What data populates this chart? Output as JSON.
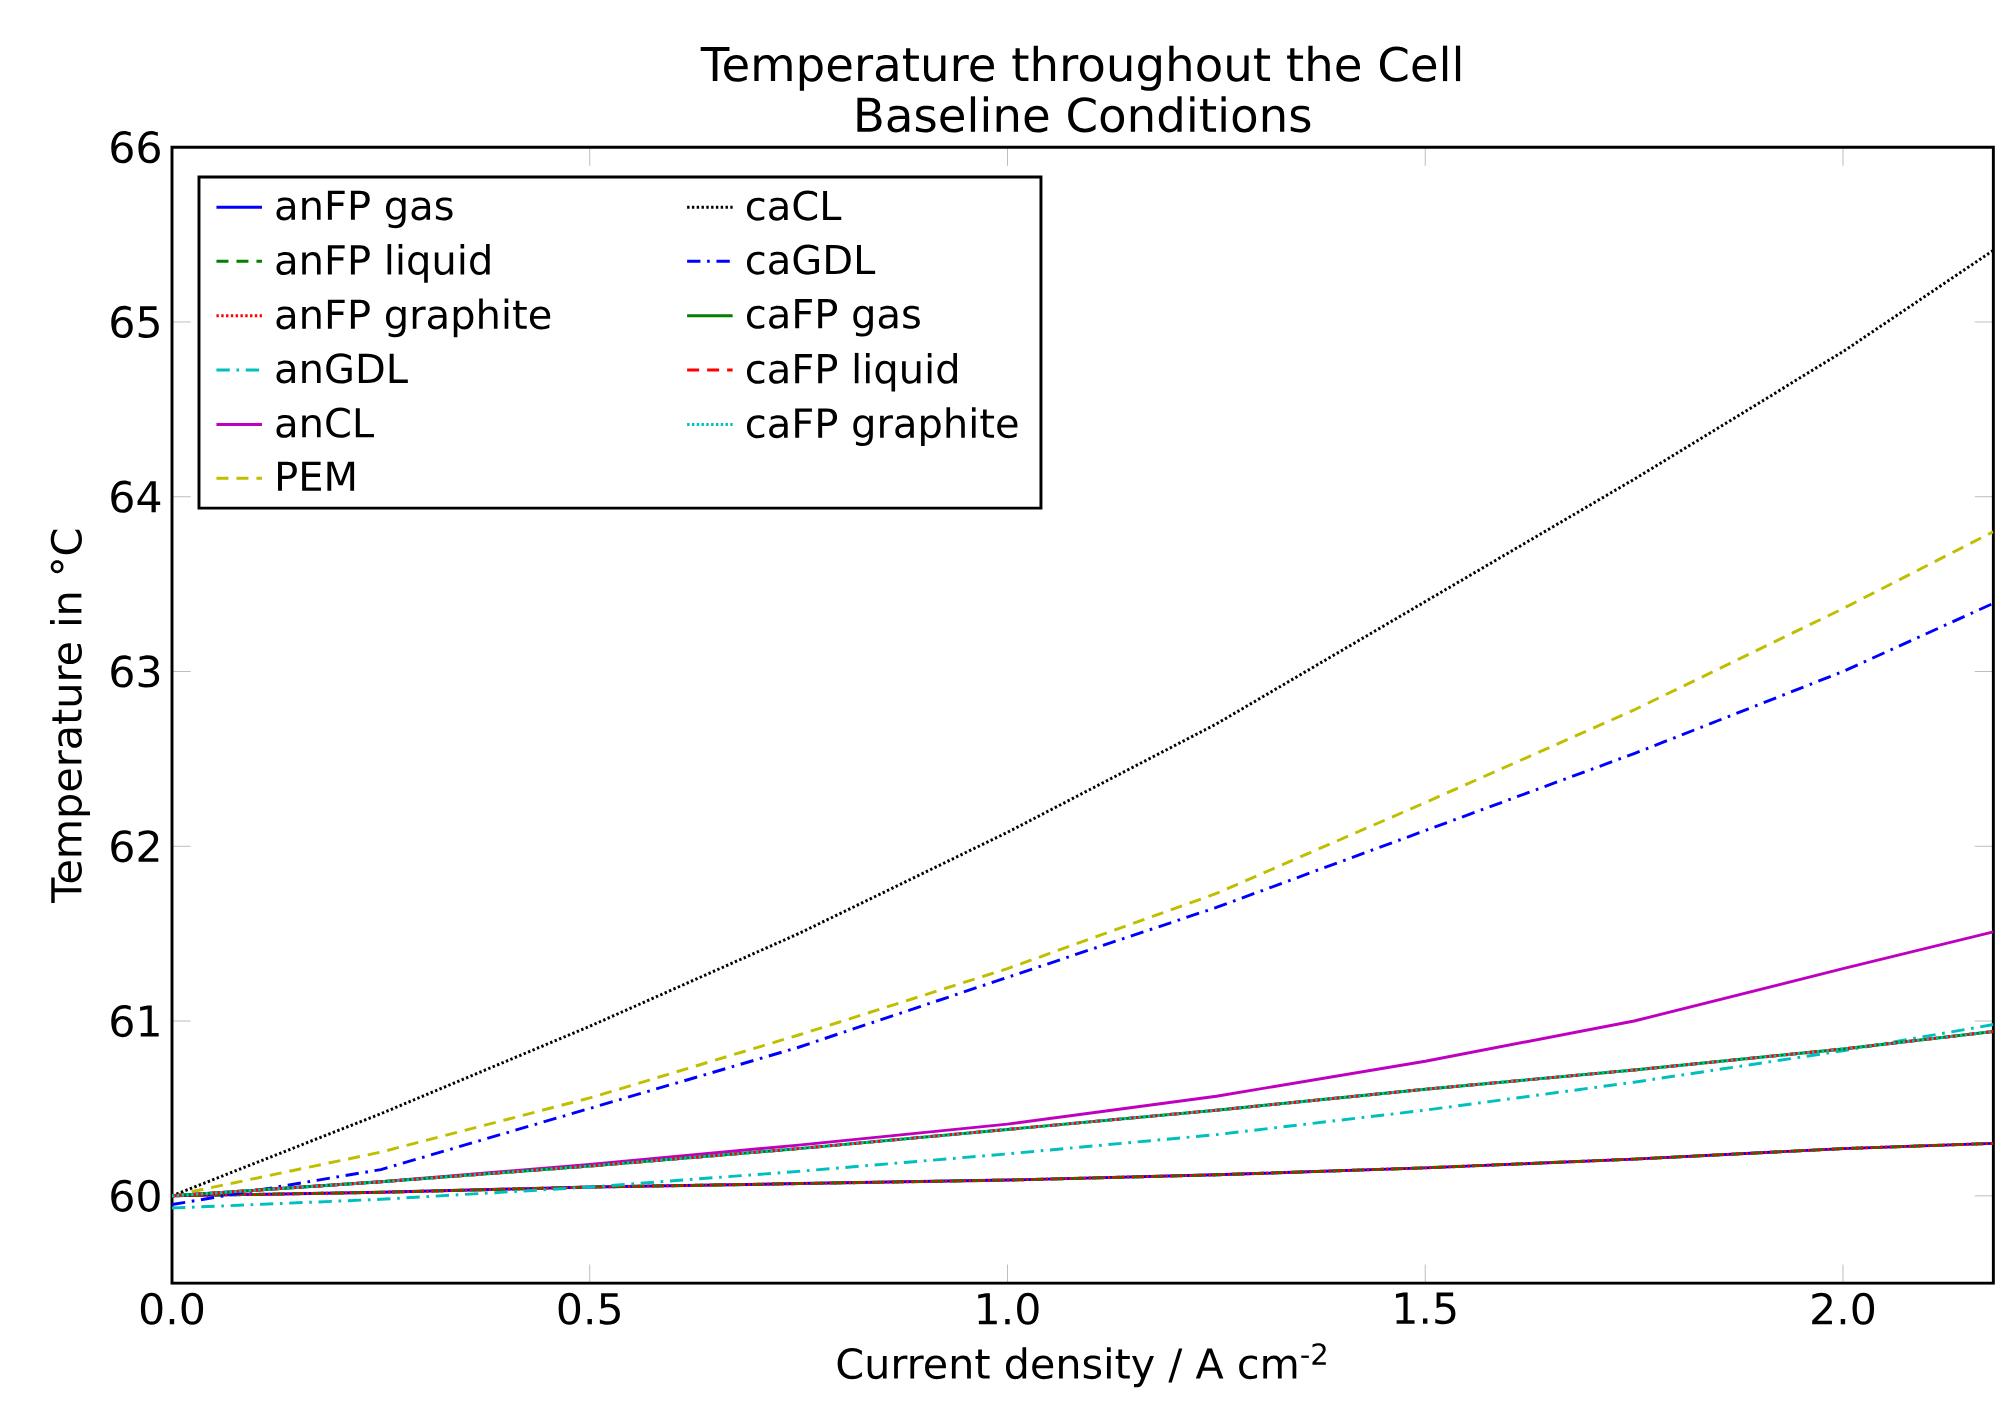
{
  "chart_data": {
    "type": "line",
    "title": "Temperature throughout the Cell",
    "subtitle": "Baseline Conditions",
    "xlabel": "Current density / A cm$^{-2}$",
    "ylabel": "Temperature in °C",
    "x": [
      0,
      0.25,
      0.5,
      0.75,
      1.0,
      1.25,
      1.5,
      1.75,
      2.0,
      2.18
    ],
    "xlim": [
      0,
      2.18
    ],
    "ylim": [
      59.5,
      66
    ],
    "xticks": [
      {
        "value": 0,
        "label": "0.0"
      },
      {
        "value": 0.5,
        "label": "0.5"
      },
      {
        "value": 1,
        "label": "1.0"
      },
      {
        "value": 1.5,
        "label": "1.5"
      },
      {
        "value": 2,
        "label": "2.0"
      }
    ],
    "yticks": [
      60,
      61,
      62,
      63,
      64,
      65,
      66
    ],
    "legend": "top left",
    "marker": "none",
    "series": [
      {
        "name": "anFP gas",
        "color": "#0000ff",
        "line_style": "solid",
        "values": [
          60.0,
          60.02,
          60.05,
          60.07,
          60.09,
          60.12,
          60.16,
          60.21,
          60.27,
          60.3
        ]
      },
      {
        "name": "anFP liquid",
        "color": "#008000",
        "line_style": "dashed",
        "values": [
          60.0,
          60.02,
          60.05,
          60.07,
          60.09,
          60.12,
          60.16,
          60.21,
          60.27,
          60.3
        ]
      },
      {
        "name": "anFP graphite",
        "color": "#ff0000",
        "line_style": "dotted",
        "values": [
          60.0,
          60.02,
          60.05,
          60.07,
          60.09,
          60.12,
          60.16,
          60.21,
          60.27,
          60.3
        ]
      },
      {
        "name": "anGDL",
        "color": "#00bfbf",
        "line_style": "dashdot",
        "values": [
          59.93,
          59.98,
          60.05,
          60.14,
          60.24,
          60.35,
          60.49,
          60.65,
          60.83,
          60.98
        ]
      },
      {
        "name": "anCL",
        "color": "#bf00bf",
        "line_style": "solid",
        "values": [
          60.0,
          60.08,
          60.18,
          60.29,
          60.41,
          60.57,
          60.77,
          61.0,
          61.3,
          61.51
        ]
      },
      {
        "name": "PEM",
        "color": "#bfbf00",
        "line_style": "dashed",
        "values": [
          60.0,
          60.25,
          60.56,
          60.92,
          61.3,
          61.73,
          62.25,
          62.78,
          63.36,
          63.8
        ]
      },
      {
        "name": "caCL",
        "color": "#000000",
        "line_style": "dotted",
        "values": [
          60.0,
          60.47,
          60.97,
          61.5,
          62.08,
          62.7,
          63.4,
          64.1,
          64.83,
          65.41
        ]
      },
      {
        "name": "caGDL",
        "color": "#0000ff",
        "line_style": "dashdot",
        "values": [
          59.95,
          60.15,
          60.5,
          60.85,
          61.25,
          61.65,
          62.09,
          62.53,
          63.0,
          63.39
        ]
      },
      {
        "name": "caFP gas",
        "color": "#008000",
        "line_style": "solid",
        "values": [
          60.0,
          60.08,
          60.17,
          60.27,
          60.38,
          60.49,
          60.61,
          60.72,
          60.84,
          60.94
        ]
      },
      {
        "name": "caFP liquid",
        "color": "#ff0000",
        "line_style": "dashed",
        "values": [
          60.0,
          60.08,
          60.17,
          60.27,
          60.38,
          60.49,
          60.61,
          60.72,
          60.84,
          60.94
        ]
      },
      {
        "name": "caFP graphite",
        "color": "#00bfbf",
        "line_style": "dotted",
        "values": [
          60.0,
          60.08,
          60.17,
          60.27,
          60.38,
          60.49,
          60.61,
          60.72,
          60.84,
          60.94
        ]
      }
    ]
  }
}
